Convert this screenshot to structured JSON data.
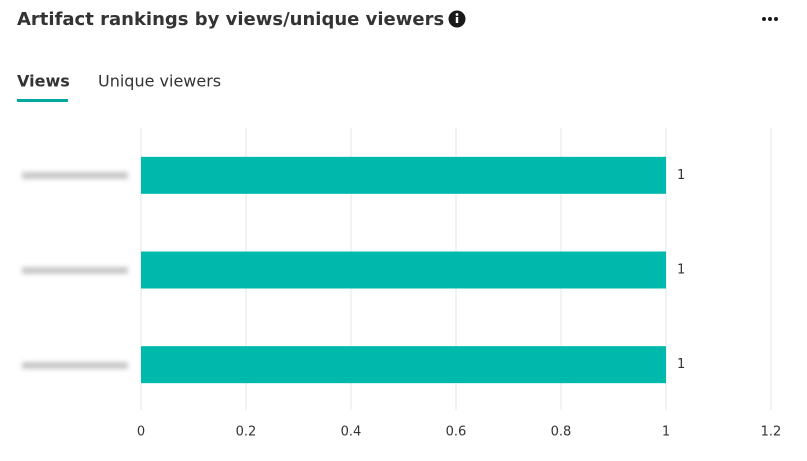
{
  "tabs": [
    "Views",
    "Unique viewers"
  ],
  "chart_data": {
    "type": "bar",
    "orientation": "horizontal",
    "title": "Artifact rankings by views/unique viewers",
    "categories": [
      null,
      null,
      null
    ],
    "values": [
      1,
      1,
      1
    ],
    "color": "#00b9ad",
    "xlim": [
      0,
      1.2
    ],
    "xticks": [
      0,
      0.2,
      0.4,
      0.6,
      0.8,
      1,
      1.2
    ],
    "grid": true
  }
}
